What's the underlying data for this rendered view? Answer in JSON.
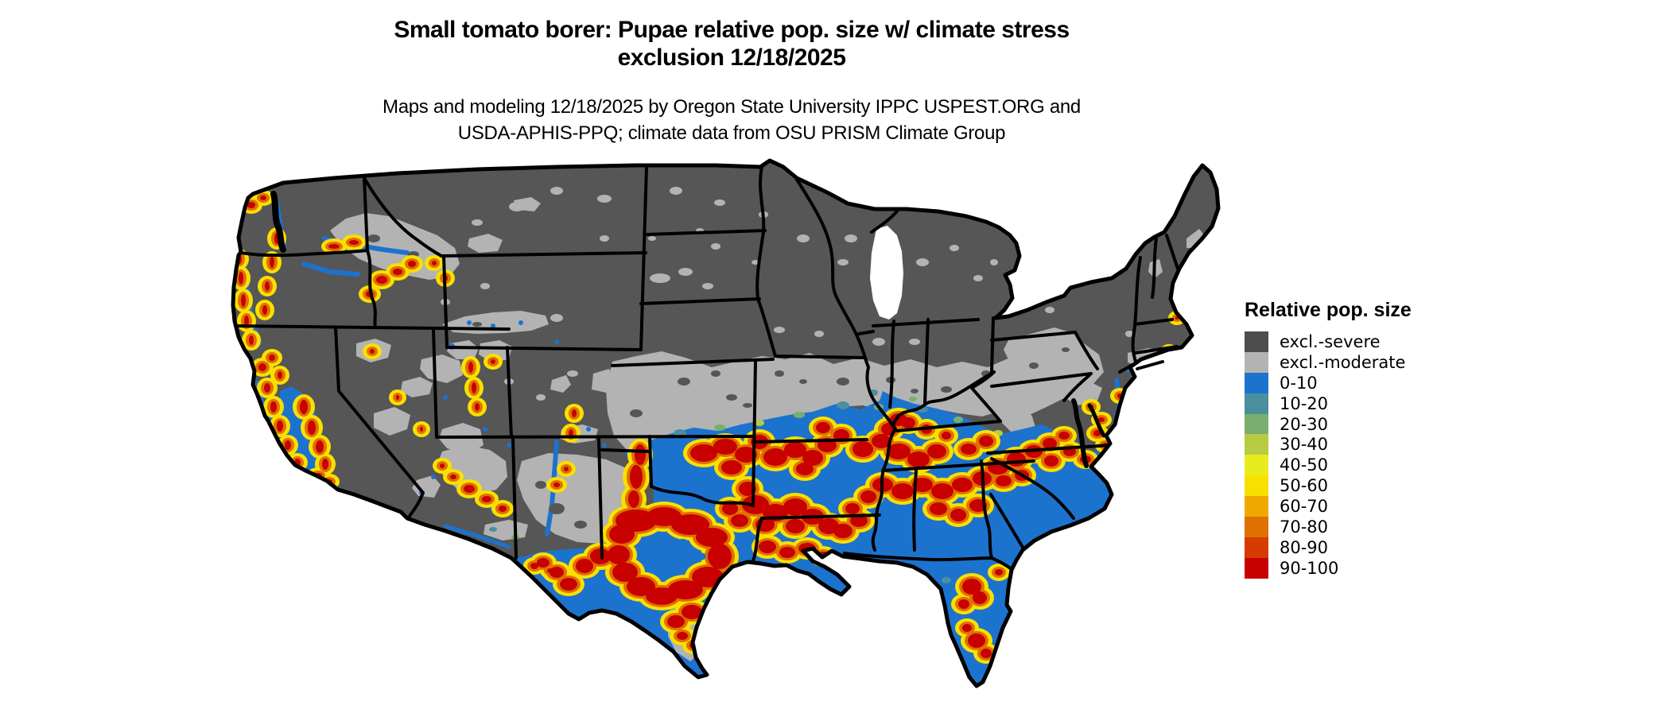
{
  "figure": {
    "title_line1": "Small tomato borer: Pupae relative pop. size w/ climate stress",
    "title_line2": "exclusion 12/18/2025",
    "subtitle_line1": "Maps and modeling 12/18/2025 by Oregon State University IPPC USPEST.ORG and",
    "subtitle_line2": "USDA-APHIS-PPQ; climate data from OSU PRISM Climate Group"
  },
  "legend": {
    "title": "Relative pop. size",
    "entries": [
      {
        "label": "excl.-severe",
        "color": "#4d4d4d"
      },
      {
        "label": "excl.-moderate",
        "color": "#b3b3b3"
      },
      {
        "label": "0-10",
        "color": "#1c73ce"
      },
      {
        "label": "10-20",
        "color": "#4a8f9e"
      },
      {
        "label": "20-30",
        "color": "#7bae6e"
      },
      {
        "label": "30-40",
        "color": "#b5cc43"
      },
      {
        "label": "40-50",
        "color": "#e8ec1e"
      },
      {
        "label": "50-60",
        "color": "#f8e000"
      },
      {
        "label": "60-70",
        "color": "#efa800"
      },
      {
        "label": "70-80",
        "color": "#e07000"
      },
      {
        "label": "80-90",
        "color": "#d63b00"
      },
      {
        "label": "90-100",
        "color": "#c80000"
      }
    ]
  },
  "map": {
    "description": "Contiguous United States modeled raster map with state borders",
    "palette": {
      "background": "#ffffff",
      "state_border": "#000000",
      "excl_severe": "#565656",
      "excl_moderate": "#b3b3b3",
      "pop_0_10": "#1c73ce",
      "pop_10_20": "#4a8f9e",
      "pop_20_30": "#7bae6e",
      "pop_30_40": "#b5cc43",
      "pop_40_50": "#e8ec1e",
      "pop_50_60": "#f8e000",
      "pop_60_70": "#efa800",
      "pop_70_80": "#e07000",
      "pop_80_90": "#d63b00",
      "pop_90_100": "#c80000"
    }
  }
}
